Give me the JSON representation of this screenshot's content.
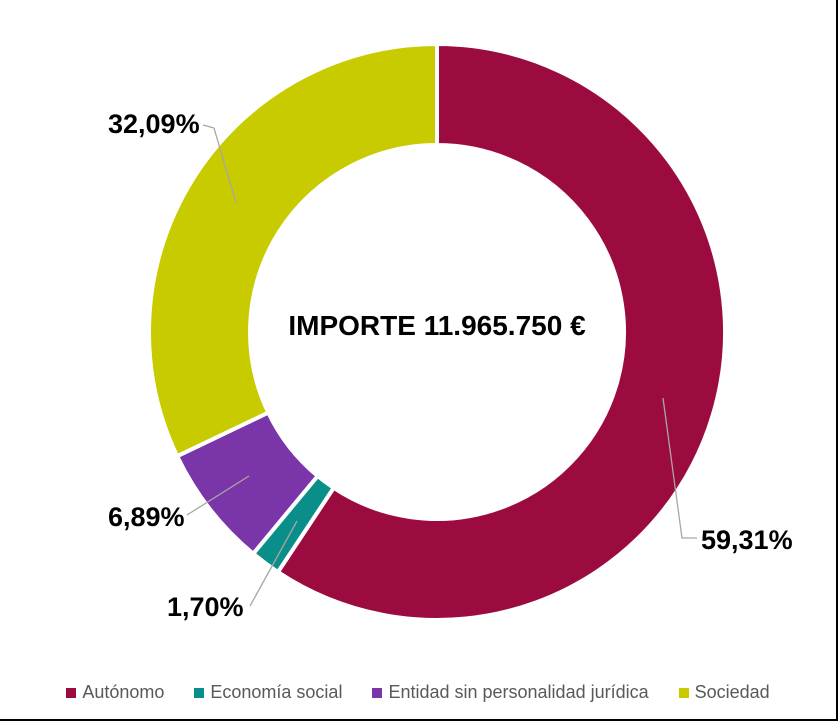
{
  "page": {
    "background": "#ffffff",
    "frame_border_color": "#000000"
  },
  "chart_data": {
    "type": "pie",
    "subtype": "donut",
    "title": "",
    "center_label": "IMPORTE 11.965.750 €",
    "categories": [
      "Autónomo",
      "Economía social",
      "Entidad sin personalidad jurídica",
      "Sociedad"
    ],
    "values": [
      59.31,
      1.7,
      6.89,
      32.09
    ],
    "labels": [
      "59,31%",
      "1,70%",
      "6,89%",
      "32,09%"
    ],
    "colors": [
      "#9C0B3F",
      "#0A8E89",
      "#7A35A8",
      "#C8CB00"
    ],
    "start_angle_deg": 0,
    "direction": "clockwise",
    "inner_radius_ratio": 0.65,
    "slice_gap_color": "#ffffff",
    "legend_position": "bottom",
    "legend_text_color": "#595959",
    "data_label_color": "#000000",
    "leader_line_color": "#A6A6A6"
  }
}
